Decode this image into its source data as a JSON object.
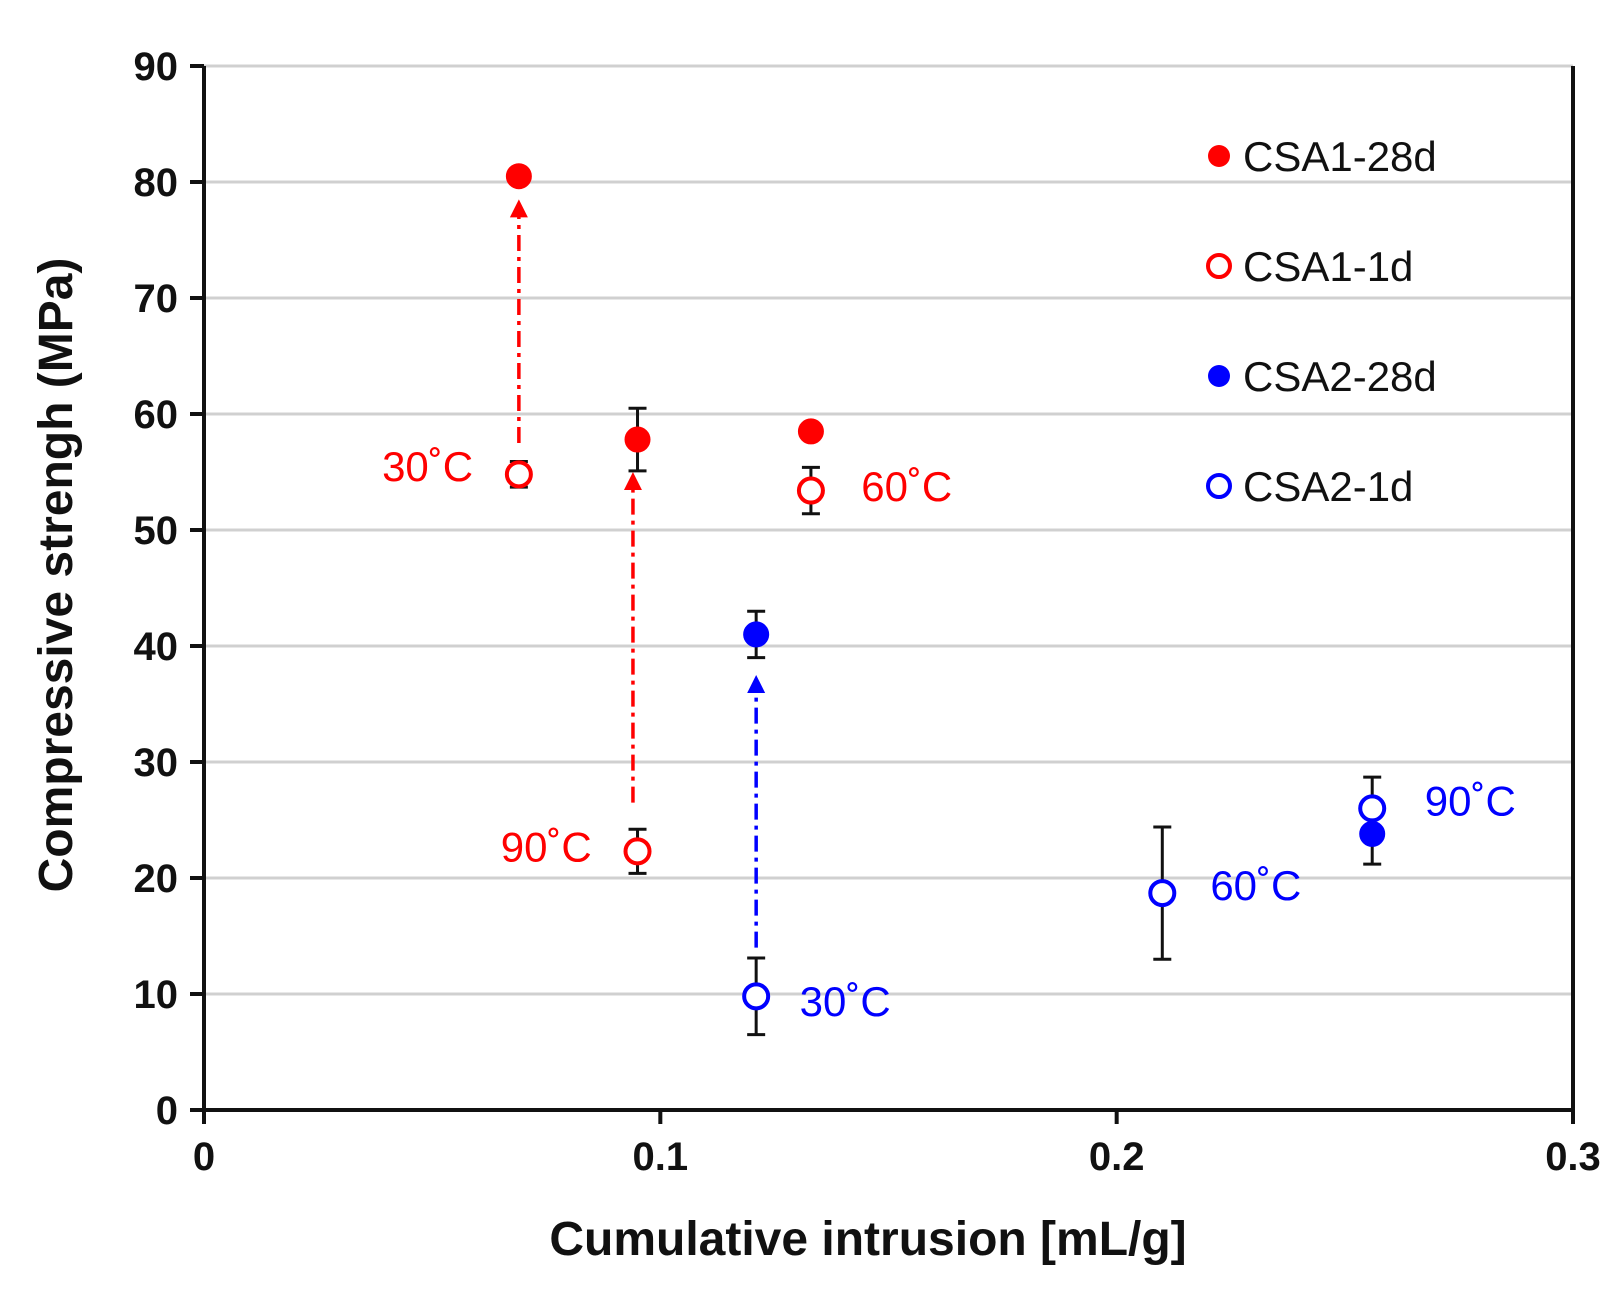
{
  "chart_data": {
    "type": "scatter",
    "title": "",
    "xlabel": "Cumulative intrusion [mL/g]",
    "ylabel": "Compressive strengh (MPa)",
    "xlim": [
      0,
      0.3
    ],
    "ylim": [
      0,
      90
    ],
    "xticks": [
      0,
      0.1,
      0.2,
      0.3
    ],
    "xtick_labels": [
      "0",
      "0.1",
      "0.2",
      "0.3"
    ],
    "yticks": [
      0,
      10,
      20,
      30,
      40,
      50,
      60,
      70,
      80,
      90
    ],
    "ytick_labels": [
      "0",
      "10",
      "20",
      "30",
      "40",
      "50",
      "60",
      "70",
      "80",
      "90"
    ],
    "grid": "horizontal",
    "legend_position": "top-right",
    "colors": {
      "red": "#ff0000",
      "blue": "#0000ff",
      "axis": "#111111",
      "grid": "#d0d0d0"
    },
    "series": [
      {
        "name": "CSA1-28d",
        "color": "#ff0000",
        "filled": true,
        "points": [
          {
            "x": 0.069,
            "y": 80.5,
            "err": 0
          },
          {
            "x": 0.095,
            "y": 57.8,
            "err": 2.7
          },
          {
            "x": 0.133,
            "y": 58.5,
            "err": 0
          }
        ]
      },
      {
        "name": "CSA1-1d",
        "color": "#ff0000",
        "filled": false,
        "points": [
          {
            "x": 0.069,
            "y": 54.8,
            "err": 1.1
          },
          {
            "x": 0.095,
            "y": 22.3,
            "err": 1.9
          },
          {
            "x": 0.133,
            "y": 53.4,
            "err": 2.0
          }
        ]
      },
      {
        "name": "CSA2-28d",
        "color": "#0000ff",
        "filled": true,
        "points": [
          {
            "x": 0.121,
            "y": 41.0,
            "err": 2.0
          },
          {
            "x": 0.256,
            "y": 23.8,
            "err": 2.6
          }
        ]
      },
      {
        "name": "CSA2-1d",
        "color": "#0000ff",
        "filled": false,
        "points": [
          {
            "x": 0.121,
            "y": 9.8,
            "err": 3.3
          },
          {
            "x": 0.21,
            "y": 18.7,
            "err": 5.7
          },
          {
            "x": 0.256,
            "y": 26.0,
            "err": 2.7
          }
        ]
      }
    ],
    "arrows": [
      {
        "color": "#ff0000",
        "x": 0.069,
        "from_y": 57.5,
        "to_y": 78.5
      },
      {
        "color": "#ff0000",
        "x": 0.094,
        "from_y": 26.5,
        "to_y": 55.0
      },
      {
        "color": "#0000ff",
        "x": 0.121,
        "from_y": 14.0,
        "to_y": 37.5
      }
    ],
    "annotations": [
      {
        "text": "30˚C",
        "color": "#ff0000",
        "x": 0.049,
        "y": 55.5,
        "anchor": "middle"
      },
      {
        "text": "60˚C",
        "color": "#ff0000",
        "x": 0.154,
        "y": 53.8,
        "anchor": "middle"
      },
      {
        "text": "90˚C",
        "color": "#ff0000",
        "x": 0.075,
        "y": 22.7,
        "anchor": "middle"
      },
      {
        "text": "30˚C",
        "color": "#0000ff",
        "x": 0.1405,
        "y": 9.4,
        "anchor": "middle"
      },
      {
        "text": "60˚C",
        "color": "#0000ff",
        "x": 0.2305,
        "y": 19.4,
        "anchor": "middle"
      },
      {
        "text": "90˚C",
        "color": "#0000ff",
        "x": 0.2775,
        "y": 26.7,
        "anchor": "middle"
      }
    ]
  }
}
